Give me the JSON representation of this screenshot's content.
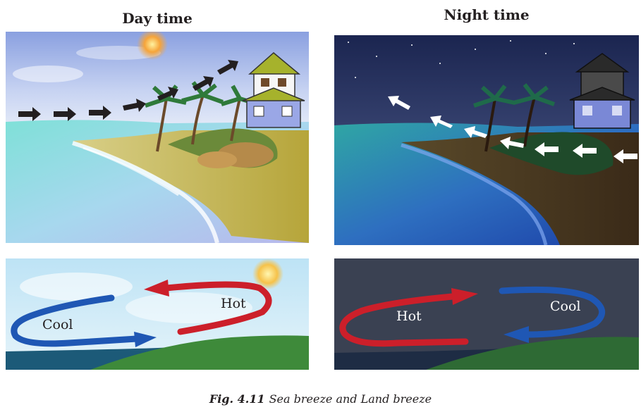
{
  "titles": {
    "day": "Day time",
    "night": "Night time"
  },
  "labels": {
    "day": {
      "cool": "Cool",
      "hot": "Hot"
    },
    "night": {
      "hot": "Hot",
      "cool": "Cool"
    }
  },
  "caption": {
    "fig": "Fig. 4.11",
    "text": "Sea breeze and Land  breeze"
  },
  "colors": {
    "hot_arrow": "#cc1f2a",
    "cool_arrow": "#1f57b4",
    "sea_breeze_arrow": "#231f20",
    "land_breeze_arrow": "#ffffff"
  },
  "icons": {
    "sun": "sun-icon",
    "house": "house-icon",
    "palm": "palm-tree-icon",
    "wind_arrow": "wind-arrow-icon"
  }
}
